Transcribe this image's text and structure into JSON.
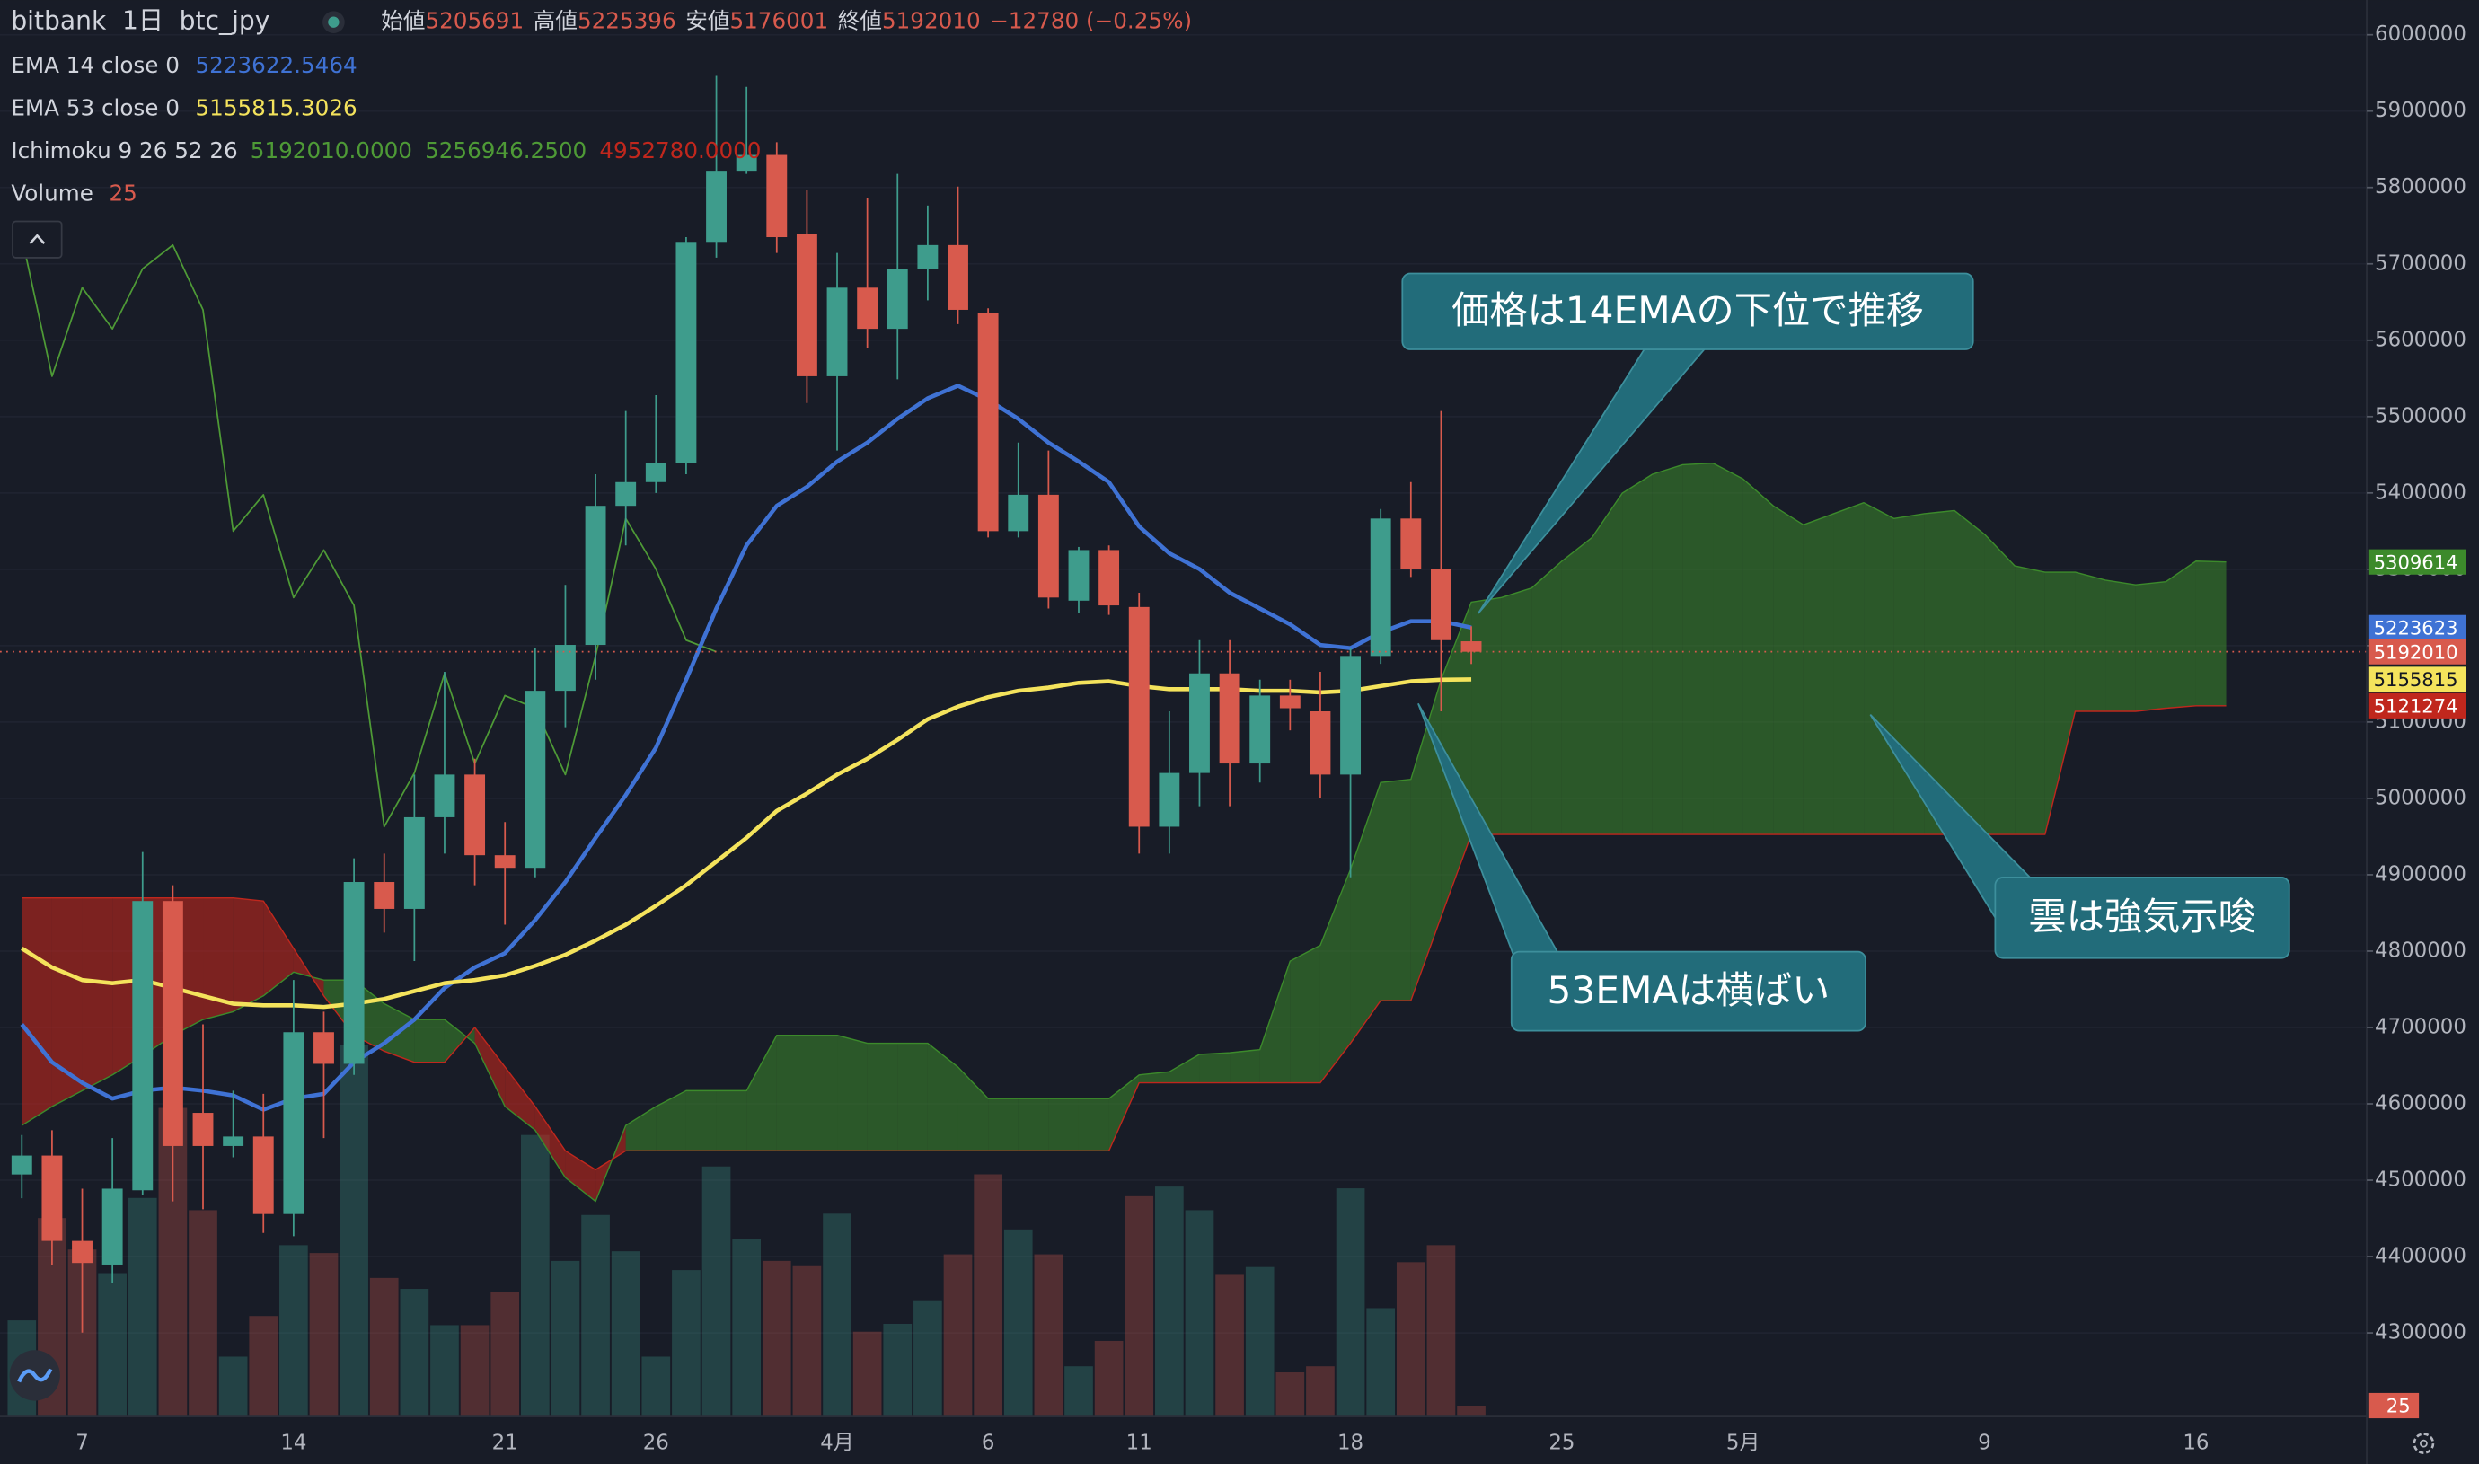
{
  "chart_data": {
    "type": "candlestick",
    "header": {
      "exchange": "bitbank",
      "interval": "1日",
      "symbol": "btc_jpy",
      "open_label": "始値",
      "high_label": "高値",
      "low_label": "安値",
      "close_label": "終値",
      "change": "−12780 (−0.25%)"
    },
    "categories": [
      null,
      null,
      "7",
      null,
      null,
      null,
      null,
      null,
      null,
      "14",
      null,
      null,
      null,
      null,
      null,
      null,
      "21",
      null,
      null,
      null,
      null,
      "26",
      null,
      null,
      null,
      null,
      null,
      "4月",
      null,
      null,
      null,
      null,
      "6",
      null,
      null,
      null,
      null,
      "11",
      null,
      null,
      null,
      null,
      null,
      null,
      "18",
      null,
      null,
      null,
      null,
      null,
      null,
      "25",
      null,
      null,
      null,
      null,
      null,
      "5月",
      null,
      null,
      null,
      null,
      null,
      null,
      null,
      "9",
      null,
      null,
      null,
      null,
      null,
      null,
      "16",
      null,
      null,
      null,
      null,
      null
    ],
    "up_color": "#3e9c8c",
    "down_color": "#d85a4d",
    "open": [
      4507500,
      4532300,
      4420500,
      4389500,
      4486800,
      4865600,
      4588200,
      4544800,
      4557200,
      4455700,
      4693800,
      4652400,
      4890500,
      4855300,
      4975300,
      5031200,
      4925600,
      4909100,
      5140900,
      5201000,
      5383100,
      5414200,
      5439000,
      5728800,
      5821900,
      5842600,
      5739100,
      5552800,
      5668800,
      5614900,
      5693600,
      5724600,
      5635600,
      5350000,
      5397600,
      5258900,
      5325200,
      5250600,
      4962900,
      5033300,
      5163700,
      5045700,
      5134700,
      5114000,
      5031200,
      5186500,
      5366500,
      5300300,
      5205691,
      null,
      null,
      null,
      null,
      null,
      null,
      null,
      null,
      null,
      null,
      null,
      null,
      null,
      null,
      null,
      null,
      null,
      null,
      null,
      null,
      null,
      null,
      null,
      null,
      null,
      null,
      null,
      null,
      null
    ],
    "high": [
      4559200,
      4565400,
      4488900,
      4555100,
      4929800,
      4886300,
      4704100,
      4617200,
      4613100,
      4762100,
      4720700,
      4921500,
      4927700,
      5031200,
      5165800,
      5051900,
      4969100,
      5196800,
      5279600,
      5424500,
      5507300,
      5528000,
      5735000,
      5946100,
      5931700,
      5859200,
      5797100,
      5714300,
      5786800,
      5817800,
      5776400,
      5801200,
      5641850,
      5465900,
      5455600,
      5329300,
      5331300,
      5269300,
      5114000,
      5207200,
      5207200,
      5155400,
      5155400,
      5165800,
      5196800,
      5379000,
      5414200,
      5507300,
      5225396,
      null,
      null,
      null,
      null,
      null,
      null,
      null,
      null,
      null,
      null,
      null,
      null,
      null,
      null,
      null,
      null,
      null,
      null,
      null,
      null,
      null,
      null,
      null,
      null,
      null,
      null,
      null,
      null,
      null
    ],
    "low": [
      4476400,
      4389500,
      4300400,
      4364700,
      4480600,
      4472300,
      4461900,
      4530000,
      4430900,
      4426700,
      4555100,
      4637900,
      4824200,
      4787000,
      4927700,
      4886300,
      4834600,
      4896700,
      5093300,
      5155400,
      5331300,
      5400000,
      5424500,
      5708100,
      5817800,
      5714300,
      5517700,
      5455600,
      5590100,
      5548700,
      5652200,
      5621100,
      5341700,
      5341700,
      5248600,
      5242400,
      5240300,
      4927700,
      4927700,
      4989800,
      4989800,
      5020800,
      5089100,
      5000200,
      4896700,
      5176200,
      5290000,
      5114000,
      5176001,
      null,
      null,
      null,
      null,
      null,
      null,
      null,
      null,
      null,
      null,
      null,
      null,
      null,
      null,
      null,
      null,
      null,
      null,
      null,
      null,
      null,
      null,
      null,
      null,
      null,
      null,
      null,
      null,
      null
    ],
    "close": [
      4532300,
      4420500,
      4391600,
      4488900,
      4865600,
      4544800,
      4544800,
      4557200,
      4455700,
      4693800,
      4652400,
      4890500,
      4855300,
      4975300,
      5031200,
      4925600,
      4909100,
      5140900,
      5201000,
      5383100,
      5414200,
      5439000,
      5728800,
      5821900,
      5842600,
      5735000,
      5552800,
      5668800,
      5614900,
      5693600,
      5724600,
      5639800,
      5350000,
      5397600,
      5263000,
      5325200,
      5252700,
      4962900,
      5033300,
      5163700,
      5045700,
      5134700,
      5118100,
      5031200,
      5186500,
      5366500,
      5300300,
      5207200,
      5192010,
      null,
      null,
      null,
      null,
      null,
      null,
      null,
      null,
      null,
      null,
      null,
      null,
      null,
      null,
      null,
      null,
      null,
      null,
      null,
      null,
      null,
      null,
      null,
      null,
      null,
      null,
      null,
      null,
      null
    ],
    "volume": {
      "name": "Volume",
      "ylim": [
        0,
        3240
      ],
      "values": [
        220,
        454,
        382,
        328,
        500,
        706,
        472,
        137,
        230,
        392,
        374,
        850,
        317,
        292,
        209,
        209,
        284,
        644,
        356,
        461,
        378,
        137,
        335,
        572,
        407,
        356,
        346,
        464,
        194,
        212,
        266,
        371,
        554,
        428,
        371,
        115,
        173,
        504,
        526,
        472,
        324,
        342,
        101,
        115,
        522,
        248,
        353,
        392,
        25,
        null,
        null,
        null,
        null,
        null,
        null,
        null,
        null,
        null,
        null,
        null,
        null,
        null,
        null,
        null,
        null,
        null,
        null,
        null,
        null,
        null,
        null,
        null,
        null,
        null,
        null,
        null,
        null,
        null
      ]
    },
    "series": [
      {
        "name": "EMA 14 close 0",
        "color": "#3f72d4",
        "last_label": "5223623",
        "values": [
          4704100,
          4654500,
          4627600,
          4606900,
          4617200,
          4621300,
          4617200,
          4611000,
          4592400,
          4606900,
          4613100,
          4654500,
          4679300,
          4710400,
          4751800,
          4778700,
          4797300,
          4840800,
          4890400,
          4948400,
          5004300,
          5066400,
          5155400,
          5248600,
          5331400,
          5383100,
          5407900,
          5441100,
          5465900,
          5497000,
          5523900,
          5540400,
          5521800,
          5497000,
          5465900,
          5441100,
          5414200,
          5356200,
          5321000,
          5300300,
          5269300,
          5248600,
          5227900,
          5200900,
          5196800,
          5217500,
          5232000,
          5232000,
          5223622.5464,
          null,
          null,
          null,
          null,
          null,
          null,
          null,
          null,
          null,
          null,
          null,
          null,
          null,
          null,
          null,
          null,
          null,
          null,
          null,
          null,
          null,
          null,
          null,
          null,
          null,
          null,
          null,
          null,
          null
        ]
      },
      {
        "name": "EMA 53 close 0",
        "color": "#f4e35c",
        "last_label": "5155815",
        "values": [
          4803500,
          4778700,
          4762100,
          4758000,
          4762100,
          4751800,
          4741400,
          4731100,
          4729000,
          4729000,
          4726900,
          4731100,
          4737300,
          4747600,
          4758000,
          4762100,
          4768300,
          4780700,
          4795200,
          4813900,
          4834600,
          4859400,
          4886300,
          4917400,
          4948400,
          4983600,
          5006400,
          5031200,
          5051900,
          5076700,
          5103700,
          5120200,
          5132600,
          5140900,
          5145100,
          5151300,
          5153300,
          5147100,
          5143000,
          5143000,
          5143000,
          5140900,
          5140900,
          5138800,
          5140900,
          5147100,
          5153300,
          5155400,
          5155815.3026,
          null,
          null,
          null,
          null,
          null,
          null,
          null,
          null,
          null,
          null,
          null,
          null,
          null,
          null,
          null,
          null,
          null,
          null,
          null,
          null,
          null,
          null,
          null,
          null,
          null,
          null,
          null,
          null,
          null
        ]
      }
    ],
    "ichimoku": {
      "name": "Ichimoku 9 26 52 26",
      "value_labels": [
        "5192010.0000",
        "5256946.2500",
        "4952780.0000"
      ],
      "lagging": {
        "color": "#4e9a36",
        "values": [
          5735000,
          5552800,
          5668800,
          5614900,
          5693600,
          5724600,
          5639800,
          5350000,
          5397600,
          5263000,
          5325200,
          5252700,
          4962900,
          5033300,
          5163700,
          5045700,
          5134700,
          5118100,
          5031200,
          5186500,
          5366500,
          5300300,
          5207200,
          5192010,
          null,
          null,
          null,
          null,
          null,
          null,
          null,
          null,
          null,
          null,
          null,
          null,
          null,
          null,
          null,
          null,
          null,
          null,
          null,
          null,
          null,
          null,
          null,
          null,
          null,
          null,
          null,
          null,
          null,
          null,
          null,
          null,
          null,
          null,
          null,
          null,
          null,
          null,
          null,
          null,
          null,
          null,
          null,
          null,
          null,
          null,
          null,
          null,
          null,
          null,
          null,
          null,
          null,
          null
        ]
      },
      "span_a": {
        "color": "#3c8a2b",
        "values": [
          4571700,
          4596500,
          4617200,
          4637900,
          4662700,
          4689700,
          4710400,
          4720700,
          4741400,
          4772500,
          4762100,
          4762100,
          4731100,
          4710400,
          4710400,
          4679300,
          4596500,
          4565500,
          4503400,
          4472300,
          4571700,
          4596500,
          4617200,
          4617200,
          4617200,
          4689700,
          4689700,
          4689700,
          4679300,
          4679300,
          4679300,
          4648300,
          4606900,
          4606900,
          4606900,
          4606900,
          4606900,
          4637900,
          4642000,
          4664800,
          4666900,
          4671000,
          4786900,
          4807600,
          4907000,
          5020900,
          5025000,
          5155400,
          5256946.25,
          5263000,
          5275500,
          5310700,
          5341700,
          5399700,
          5424500,
          5436900,
          5439000,
          5418300,
          5383100,
          5358300,
          5372800,
          5387200,
          5366500,
          5372800,
          5376900,
          5345800,
          5304400,
          5296200,
          5296200,
          5285800,
          5279600,
          5283700,
          5310700,
          5309614,
          null,
          null,
          null,
          null
        ]
      },
      "span_b": {
        "color": "#c0271d",
        "values": [
          4869700,
          4869700,
          4869700,
          4869700,
          4869700,
          4869700,
          4869700,
          4869700,
          4865600,
          4803500,
          4741400,
          4689700,
          4669000,
          4654500,
          4654500,
          4700000,
          4648300,
          4596500,
          4538500,
          4513700,
          4538500,
          4538500,
          4538500,
          4538500,
          4538500,
          4538500,
          4538500,
          4538500,
          4538500,
          4538500,
          4538500,
          4538500,
          4538500,
          4538500,
          4538500,
          4538500,
          4538500,
          4627600,
          4627600,
          4627600,
          4627600,
          4627600,
          4627600,
          4627600,
          4679300,
          4735200,
          4735200,
          4844900,
          4952780,
          4952780,
          4952780,
          4952780,
          4952780,
          4952780,
          4952780,
          4952780,
          4952780,
          4952780,
          4952780,
          4952780,
          4952780,
          4952780,
          4952780,
          4952780,
          4952780,
          4952780,
          4952780,
          4952780,
          5114000,
          5114000,
          5114000,
          5118100,
          5121274,
          5121274,
          null,
          null,
          null,
          null
        ]
      }
    },
    "ylim": [
      4190500,
      6045500
    ],
    "yticks": [
      4300000,
      4400000,
      4500000,
      4600000,
      4700000,
      4800000,
      4900000,
      5000000,
      5100000,
      5200000,
      5300000,
      5400000,
      5500000,
      5600000,
      5700000,
      5800000,
      5900000,
      6000000
    ],
    "grid": true,
    "annotations": [
      "価格は14EMAの下位で推移",
      "53EMAは横ばい",
      "雲は強気示唆"
    ]
  }
}
